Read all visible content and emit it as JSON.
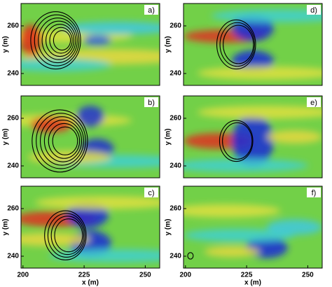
{
  "chart_data": [
    {
      "type": "heatmap",
      "panel_label": "a)",
      "ylabel": "y (m)",
      "xlim": [
        199.2,
        255.9
      ],
      "ylim": [
        235,
        269.4
      ],
      "yticks": [
        240,
        260
      ]
    },
    {
      "type": "heatmap",
      "panel_label": "b)",
      "ylabel": "y (m)",
      "xlim": [
        199.2,
        255.9
      ],
      "ylim": [
        235,
        269.4
      ],
      "yticks": [
        240,
        260
      ]
    },
    {
      "type": "heatmap",
      "panel_label": "c)",
      "ylabel": "y (m)",
      "xlabel": "x (m)",
      "xlim": [
        199.2,
        255.9
      ],
      "ylim": [
        235,
        269.4
      ],
      "yticks": [
        240,
        260
      ],
      "xticks": [
        200,
        225,
        250
      ]
    },
    {
      "type": "heatmap",
      "panel_label": "d)",
      "ylabel": "y (m)",
      "xlim": [
        199.2,
        255.9
      ],
      "ylim": [
        235,
        269.4
      ],
      "yticks": [
        240,
        260
      ]
    },
    {
      "type": "heatmap",
      "panel_label": "e)",
      "ylabel": "y (m)",
      "xlim": [
        199.2,
        255.9
      ],
      "ylim": [
        235,
        269.4
      ],
      "yticks": [
        240,
        260
      ]
    },
    {
      "type": "heatmap",
      "panel_label": "f)",
      "ylabel": "y (m)",
      "xlabel": "x (m)",
      "xlim": [
        199.2,
        255.9
      ],
      "ylim": [
        235,
        269.4
      ],
      "yticks": [
        240,
        260
      ],
      "xticks": [
        200,
        225,
        250
      ]
    }
  ]
}
